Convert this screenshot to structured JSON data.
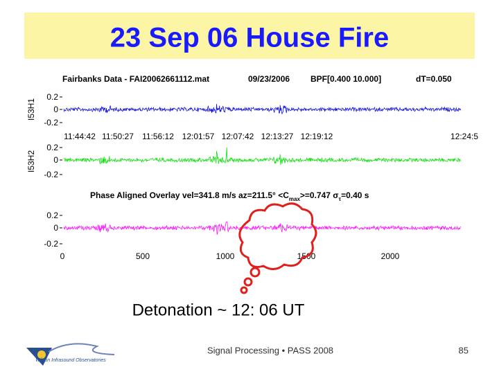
{
  "title": "23 Sep 06 House Fire",
  "figure": {
    "header": [
      "Fairbanks Data - FAI20062661112.mat",
      "09/23/2006",
      "BPF[0.400 10.000]",
      "dT=0.050"
    ],
    "panels": [
      {
        "ylabel": "I53H1",
        "yticks": [
          "0.2",
          "0",
          "-0.2"
        ]
      },
      {
        "ylabel": "I53H2",
        "yticks": [
          "0.2",
          "0",
          "-0.2"
        ]
      }
    ],
    "time_ticks": [
      "11:44:42",
      "11:50:27",
      "11:56:12",
      "12:01:57",
      "12:07:42",
      "12:13:27",
      "12:19:12",
      "12:24:5"
    ],
    "overlay_title": [
      "Phase Aligned Overlay  vel=341.8 m/s  az=211.5°  <C",
      "max",
      ">=0.747  σ",
      "τ",
      "=0.40 s"
    ],
    "overlay_yticks": [
      "0.2",
      "0",
      "-0.2"
    ],
    "x_ticks": [
      "0",
      "500",
      "1000",
      "1500",
      "2000"
    ]
  },
  "annotation": "Detonation ~ 12: 06 UT",
  "logo_text": "Wilson Infrasound Observatories",
  "footer": {
    "text": "Signal Processing • PASS 2008",
    "page": "85"
  }
}
